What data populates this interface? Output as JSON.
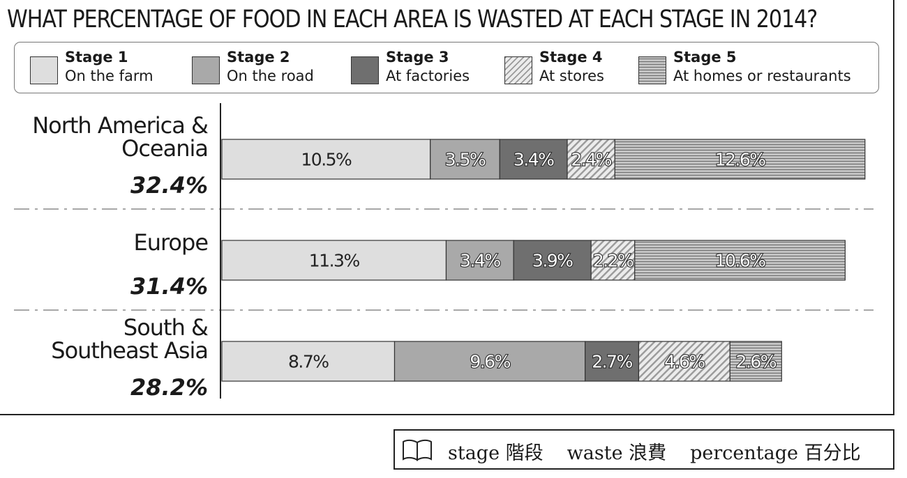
{
  "title": "WHAT PERCENTAGE OF FOOD IN EACH AREA IS WASTED AT EACH STAGE IN 2014?",
  "legend": [
    {
      "stage": "Stage 1",
      "desc": "On the farm"
    },
    {
      "stage": "Stage 2",
      "desc": "On the road"
    },
    {
      "stage": "Stage 3",
      "desc": "At factories"
    },
    {
      "stage": "Stage 4",
      "desc": "At stores"
    },
    {
      "stage": "Stage 5",
      "desc": "At homes or restaurants"
    }
  ],
  "chart_data": {
    "type": "bar",
    "orientation": "horizontal",
    "stacked": true,
    "title": "WHAT PERCENTAGE OF FOOD IN EACH AREA IS WASTED AT EACH STAGE IN 2014?",
    "categories": [
      "North America & Oceania",
      "Europe",
      "South & Southeast Asia"
    ],
    "category_totals": [
      "32.4%",
      "31.4%",
      "28.2%"
    ],
    "series": [
      {
        "name": "Stage 1",
        "values": [
          10.5,
          11.3,
          8.7
        ],
        "color": "#dedede",
        "pattern": "solid"
      },
      {
        "name": "Stage 2",
        "values": [
          3.5,
          3.4,
          9.6
        ],
        "color": "#a9a9a9",
        "pattern": "solid"
      },
      {
        "name": "Stage 3",
        "values": [
          3.4,
          3.9,
          2.7
        ],
        "color": "#6f6f6f",
        "pattern": "solid"
      },
      {
        "name": "Stage 4",
        "values": [
          2.4,
          2.2,
          4.6
        ],
        "color": "#d4d4d4",
        "pattern": "diagonal-stripes"
      },
      {
        "name": "Stage 5",
        "values": [
          12.6,
          10.6,
          2.6
        ],
        "color": "#b3b3b3",
        "pattern": "horizontal-lines"
      }
    ],
    "value_labels": [
      [
        "10.5%",
        "3.5%",
        "3.4%",
        "2.4%",
        "12.6%"
      ],
      [
        "11.3%",
        "3.4%",
        "3.9%",
        "2.2%",
        "10.6%"
      ],
      [
        "8.7%",
        "9.6%",
        "2.7%",
        "4.6%",
        "2.6%"
      ]
    ],
    "xlim": [
      0,
      32.4
    ],
    "grid": false,
    "legend_position": "top"
  },
  "vocab": [
    "stage 階段",
    "waste 浪費",
    "percentage 百分比"
  ]
}
